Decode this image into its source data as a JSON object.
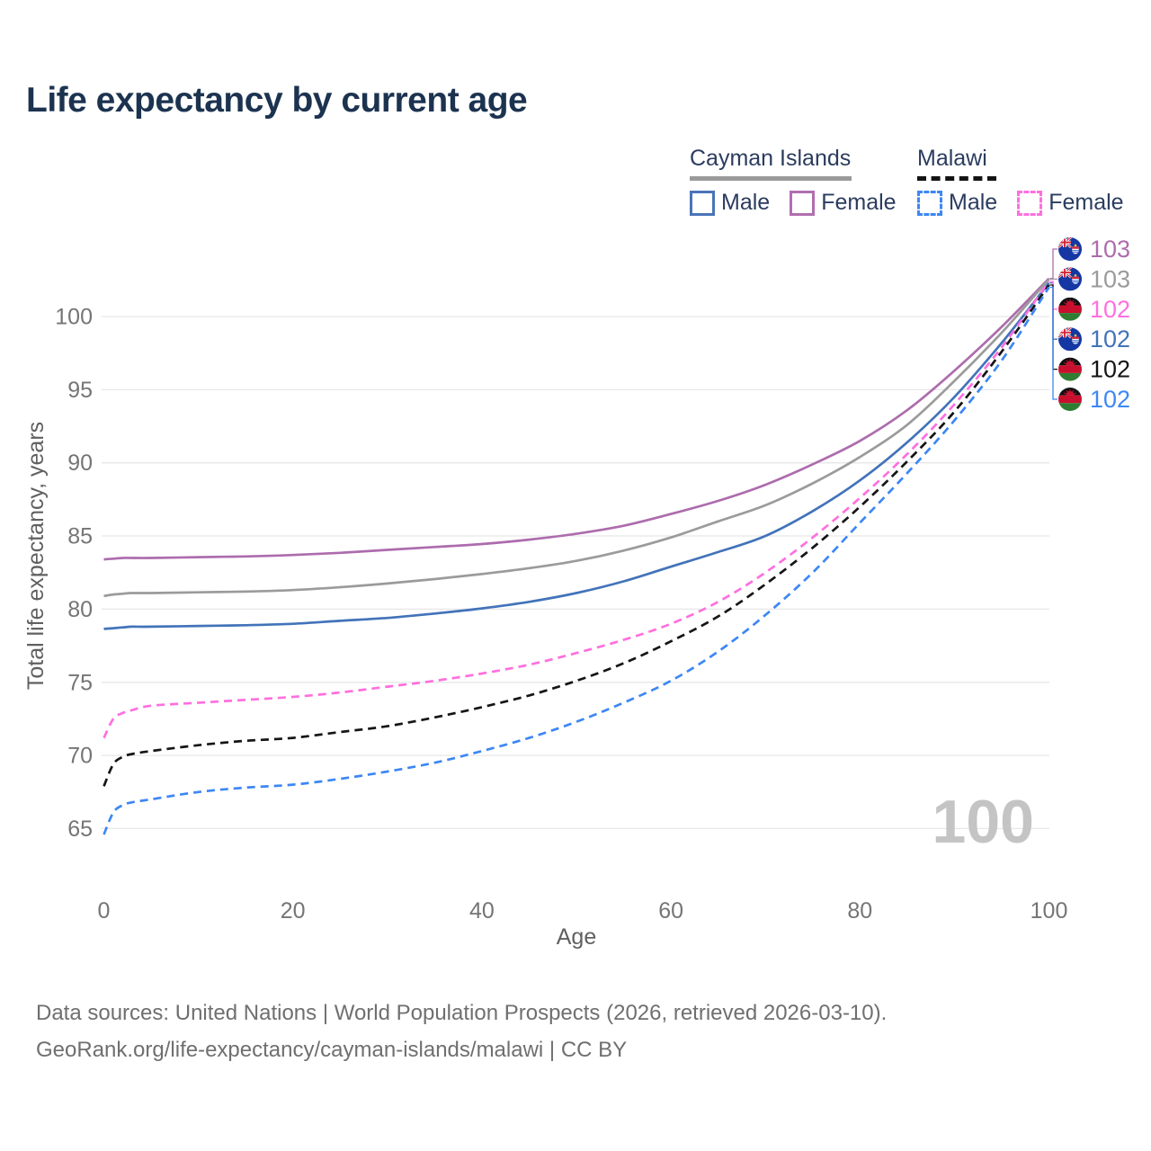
{
  "title": "Life expectancy by current age",
  "legend": {
    "groups": [
      {
        "label": "Cayman Islands",
        "line_style": "solid",
        "items": [
          {
            "label": "Male",
            "color": "#4a74b8"
          },
          {
            "label": "Female",
            "color": "#b06fb0"
          }
        ]
      },
      {
        "label": "Malawi",
        "line_style": "dashed",
        "items": [
          {
            "label": "Male",
            "color": "#3d87f5"
          },
          {
            "label": "Female",
            "color": "#ff6fdf"
          }
        ]
      }
    ]
  },
  "watermark": "100",
  "footer": {
    "line1": "Data sources: United Nations | World Population Prospects (2026, retrieved 2026-03-10).",
    "line2": "GeoRank.org/life-expectancy/cayman-islands/malawi | CC BY"
  },
  "chart_data": {
    "type": "line",
    "title": "Life expectancy by current age",
    "xlabel": "Age",
    "ylabel": "Total life expectancy, years",
    "xlim": [
      0,
      100
    ],
    "ylim": [
      63.5,
      104
    ],
    "xticks": [
      0,
      20,
      40,
      60,
      80,
      100
    ],
    "yticks": [
      65,
      70,
      75,
      80,
      85,
      90,
      95,
      100
    ],
    "grid": "horizontal",
    "legend_position": "top-right",
    "ages": [
      0,
      1,
      2,
      3,
      5,
      10,
      15,
      20,
      25,
      30,
      35,
      40,
      45,
      50,
      55,
      60,
      65,
      70,
      75,
      80,
      85,
      90,
      95,
      100
    ],
    "series": [
      {
        "id": "cayman-islands-female",
        "name": "Cayman Islands Female",
        "color": "#ad6cad",
        "line_style": "solid",
        "flag": "cayman-islands",
        "end_label": "103",
        "label_slot": 0,
        "values": [
          83.4,
          83.45,
          83.5,
          83.5,
          83.5,
          83.55,
          83.6,
          83.7,
          83.85,
          84.05,
          84.25,
          84.45,
          84.75,
          85.15,
          85.7,
          86.5,
          87.4,
          88.5,
          89.9,
          91.5,
          93.6,
          96.3,
          99.3,
          102.6
        ]
      },
      {
        "id": "cayman-islands-combined",
        "name": "Cayman Islands (both sexes)",
        "color": "#9b9b9b",
        "line_style": "solid",
        "flag": "cayman-islands",
        "end_label": "103",
        "label_slot": 1,
        "values": [
          80.9,
          81.0,
          81.05,
          81.1,
          81.1,
          81.15,
          81.2,
          81.3,
          81.5,
          81.75,
          82.05,
          82.4,
          82.8,
          83.3,
          84.0,
          84.9,
          86.0,
          87.1,
          88.6,
          90.4,
          92.6,
          95.6,
          98.9,
          102.55
        ]
      },
      {
        "id": "cayman-islands-male",
        "name": "Cayman Islands Male",
        "color": "#4273b9",
        "line_style": "solid",
        "flag": "cayman-islands",
        "end_label": "102",
        "label_slot": 3,
        "values": [
          78.65,
          78.7,
          78.75,
          78.8,
          78.8,
          78.85,
          78.9,
          79.0,
          79.2,
          79.4,
          79.7,
          80.05,
          80.5,
          81.1,
          81.9,
          82.9,
          83.9,
          85.0,
          86.7,
          88.8,
          91.4,
          94.5,
          98.2,
          102.3
        ]
      },
      {
        "id": "malawi-female",
        "name": "Malawi Female",
        "color": "#ff6fdf",
        "line_style": "dashed",
        "flag": "malawi",
        "end_label": "102",
        "label_slot": 2,
        "values": [
          71.2,
          72.5,
          72.9,
          73.1,
          73.4,
          73.6,
          73.8,
          74.0,
          74.3,
          74.7,
          75.1,
          75.6,
          76.2,
          77.0,
          77.9,
          79.0,
          80.5,
          82.5,
          84.9,
          87.6,
          90.6,
          94.0,
          97.9,
          102.4
        ]
      },
      {
        "id": "malawi-combined",
        "name": "Malawi (both sexes)",
        "color": "#151515",
        "line_style": "dashed",
        "flag": "malawi",
        "end_label": "102",
        "label_slot": 4,
        "values": [
          67.9,
          69.4,
          69.9,
          70.1,
          70.3,
          70.7,
          71.0,
          71.2,
          71.6,
          72.0,
          72.6,
          73.3,
          74.1,
          75.1,
          76.3,
          77.8,
          79.5,
          81.7,
          84.2,
          87.0,
          90.1,
          93.5,
          97.6,
          102.15
        ]
      },
      {
        "id": "malawi-male",
        "name": "Malawi Male",
        "color": "#3d87f5",
        "line_style": "dashed",
        "flag": "malawi",
        "end_label": "102",
        "label_slot": 5,
        "values": [
          64.6,
          66.1,
          66.6,
          66.8,
          67.0,
          67.5,
          67.8,
          68.0,
          68.4,
          68.9,
          69.5,
          70.3,
          71.2,
          72.3,
          73.6,
          75.1,
          77.1,
          79.6,
          82.5,
          85.9,
          89.3,
          92.9,
          97.0,
          102.0
        ]
      }
    ]
  }
}
